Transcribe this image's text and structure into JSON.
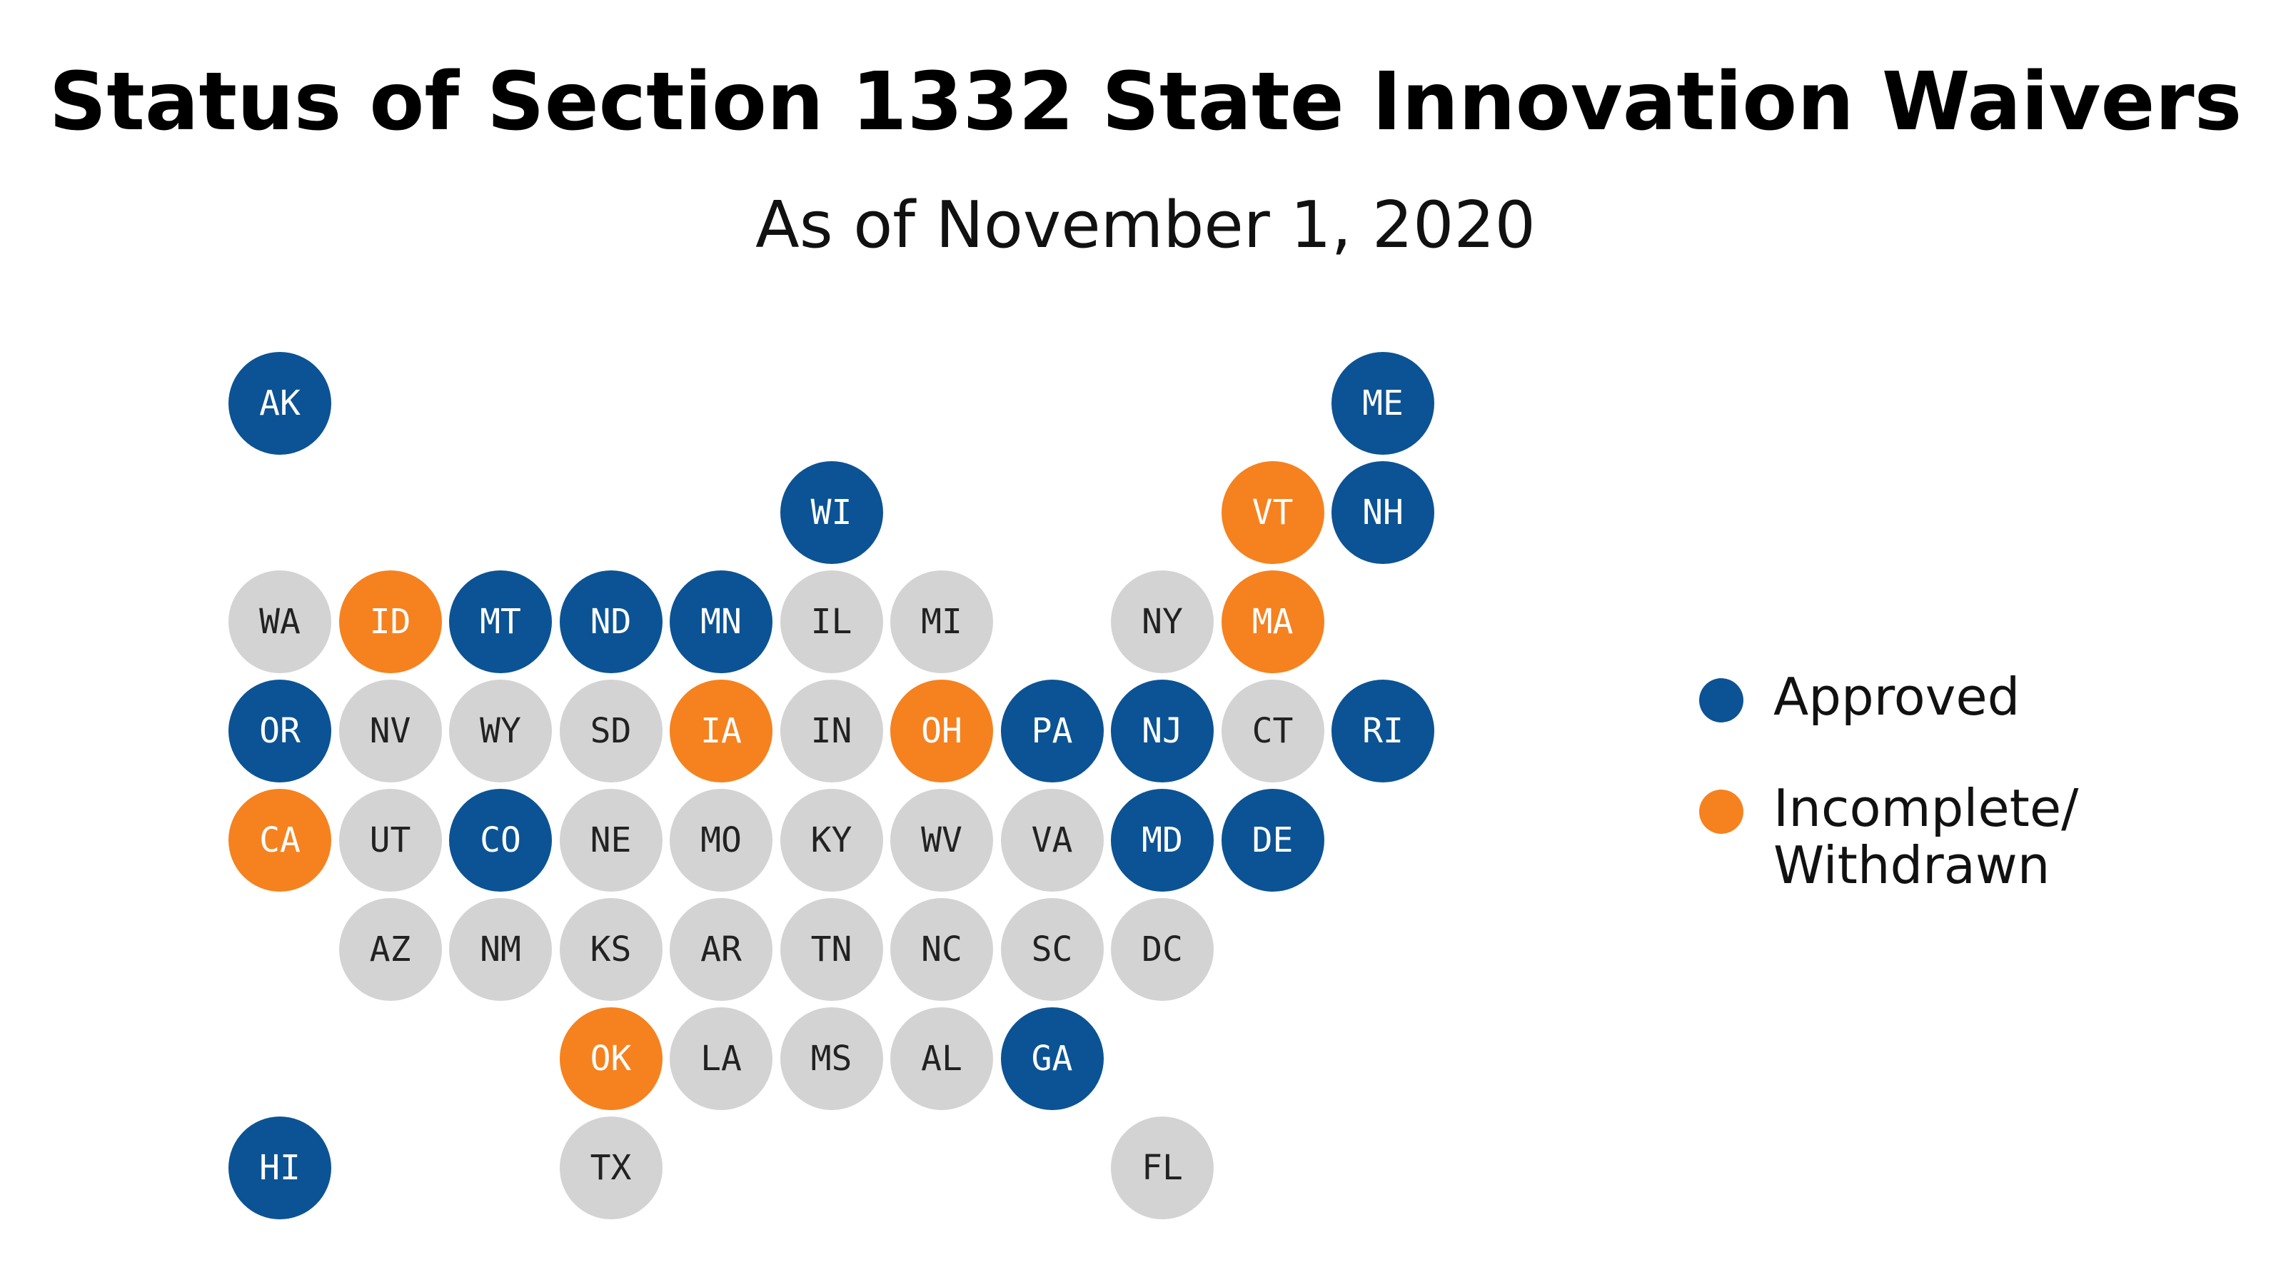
{
  "header": {
    "title": "Status of Section 1332 State Innovation Waivers",
    "subtitle": "As of November 1, 2020"
  },
  "colors": {
    "approved": "#0B5394",
    "incomplete": "#F5821F",
    "none": "#D3D3D3",
    "text_on_dark": "#FFFFFF",
    "text_on_light": "#222222"
  },
  "legend": {
    "approved_label": "Approved",
    "incomplete_label_line1": "Incomplete/",
    "incomplete_label_line2": "Withdrawn"
  },
  "states": [
    {
      "abbr": "AK",
      "row": 0,
      "col": 0,
      "status": "approved"
    },
    {
      "abbr": "ME",
      "row": 0,
      "col": 10,
      "status": "approved"
    },
    {
      "abbr": "WI",
      "row": 1,
      "col": 5,
      "status": "approved"
    },
    {
      "abbr": "VT",
      "row": 1,
      "col": 9,
      "status": "incomplete"
    },
    {
      "abbr": "NH",
      "row": 1,
      "col": 10,
      "status": "approved"
    },
    {
      "abbr": "WA",
      "row": 2,
      "col": 0,
      "status": "none"
    },
    {
      "abbr": "ID",
      "row": 2,
      "col": 1,
      "status": "incomplete"
    },
    {
      "abbr": "MT",
      "row": 2,
      "col": 2,
      "status": "approved"
    },
    {
      "abbr": "ND",
      "row": 2,
      "col": 3,
      "status": "approved"
    },
    {
      "abbr": "MN",
      "row": 2,
      "col": 4,
      "status": "approved"
    },
    {
      "abbr": "IL",
      "row": 2,
      "col": 5,
      "status": "none"
    },
    {
      "abbr": "MI",
      "row": 2,
      "col": 6,
      "status": "none"
    },
    {
      "abbr": "NY",
      "row": 2,
      "col": 8,
      "status": "none"
    },
    {
      "abbr": "MA",
      "row": 2,
      "col": 9,
      "status": "incomplete"
    },
    {
      "abbr": "OR",
      "row": 3,
      "col": 0,
      "status": "approved"
    },
    {
      "abbr": "NV",
      "row": 3,
      "col": 1,
      "status": "none"
    },
    {
      "abbr": "WY",
      "row": 3,
      "col": 2,
      "status": "none"
    },
    {
      "abbr": "SD",
      "row": 3,
      "col": 3,
      "status": "none"
    },
    {
      "abbr": "IA",
      "row": 3,
      "col": 4,
      "status": "incomplete"
    },
    {
      "abbr": "IN",
      "row": 3,
      "col": 5,
      "status": "none"
    },
    {
      "abbr": "OH",
      "row": 3,
      "col": 6,
      "status": "incomplete"
    },
    {
      "abbr": "PA",
      "row": 3,
      "col": 7,
      "status": "approved"
    },
    {
      "abbr": "NJ",
      "row": 3,
      "col": 8,
      "status": "approved"
    },
    {
      "abbr": "CT",
      "row": 3,
      "col": 9,
      "status": "none"
    },
    {
      "abbr": "RI",
      "row": 3,
      "col": 10,
      "status": "approved"
    },
    {
      "abbr": "CA",
      "row": 4,
      "col": 0,
      "status": "incomplete"
    },
    {
      "abbr": "UT",
      "row": 4,
      "col": 1,
      "status": "none"
    },
    {
      "abbr": "CO",
      "row": 4,
      "col": 2,
      "status": "approved"
    },
    {
      "abbr": "NE",
      "row": 4,
      "col": 3,
      "status": "none"
    },
    {
      "abbr": "MO",
      "row": 4,
      "col": 4,
      "status": "none"
    },
    {
      "abbr": "KY",
      "row": 4,
      "col": 5,
      "status": "none"
    },
    {
      "abbr": "WV",
      "row": 4,
      "col": 6,
      "status": "none"
    },
    {
      "abbr": "VA",
      "row": 4,
      "col": 7,
      "status": "none"
    },
    {
      "abbr": "MD",
      "row": 4,
      "col": 8,
      "status": "approved"
    },
    {
      "abbr": "DE",
      "row": 4,
      "col": 9,
      "status": "approved"
    },
    {
      "abbr": "AZ",
      "row": 5,
      "col": 1,
      "status": "none"
    },
    {
      "abbr": "NM",
      "row": 5,
      "col": 2,
      "status": "none"
    },
    {
      "abbr": "KS",
      "row": 5,
      "col": 3,
      "status": "none"
    },
    {
      "abbr": "AR",
      "row": 5,
      "col": 4,
      "status": "none"
    },
    {
      "abbr": "TN",
      "row": 5,
      "col": 5,
      "status": "none"
    },
    {
      "abbr": "NC",
      "row": 5,
      "col": 6,
      "status": "none"
    },
    {
      "abbr": "SC",
      "row": 5,
      "col": 7,
      "status": "none"
    },
    {
      "abbr": "DC",
      "row": 5,
      "col": 8,
      "status": "none"
    },
    {
      "abbr": "OK",
      "row": 6,
      "col": 3,
      "status": "incomplete"
    },
    {
      "abbr": "LA",
      "row": 6,
      "col": 4,
      "status": "none"
    },
    {
      "abbr": "MS",
      "row": 6,
      "col": 5,
      "status": "none"
    },
    {
      "abbr": "AL",
      "row": 6,
      "col": 6,
      "status": "none"
    },
    {
      "abbr": "GA",
      "row": 6,
      "col": 7,
      "status": "approved"
    },
    {
      "abbr": "HI",
      "row": 7,
      "col": 0,
      "status": "approved"
    },
    {
      "abbr": "TX",
      "row": 7,
      "col": 3,
      "status": "none"
    },
    {
      "abbr": "FL",
      "row": 7,
      "col": 8,
      "status": "none"
    }
  ]
}
